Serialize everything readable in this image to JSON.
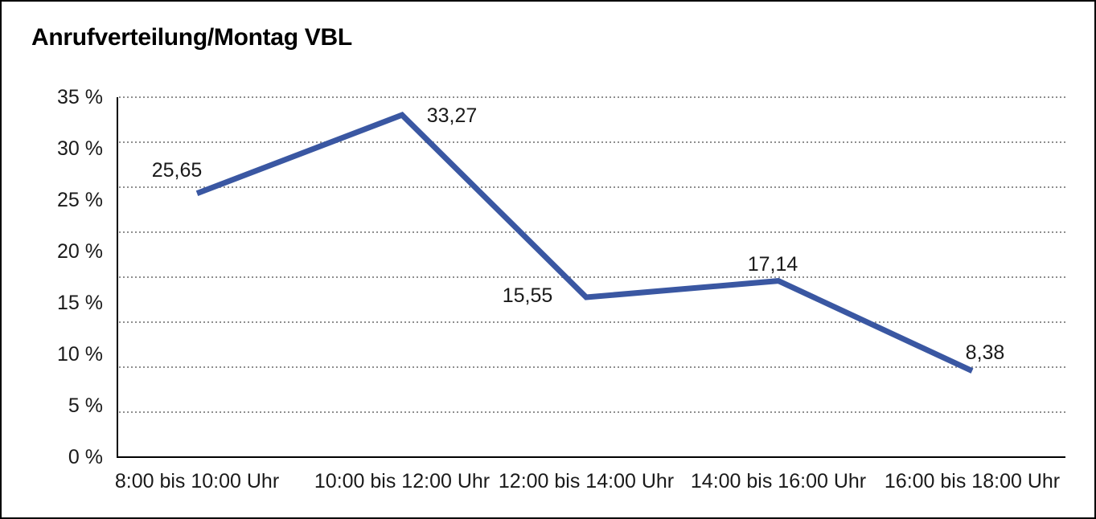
{
  "figure": {
    "border_color": "#000000",
    "background_color": "#ffffff"
  },
  "chart_data": {
    "type": "line",
    "title": "Anrufverteilung/Montag VBL",
    "categories": [
      "8:00 bis 10:00 Uhr",
      "10:00 bis 12:00 Uhr",
      "12:00 bis 14:00 Uhr",
      "14:00 bis 16:00 Uhr",
      "16:00 bis 18:00 Uhr"
    ],
    "series": [
      {
        "name": "Anrufverteilung Montag VBL",
        "values": [
          25.65,
          33.27,
          15.55,
          17.14,
          8.38
        ]
      }
    ],
    "value_labels": [
      "25,65",
      "33,27",
      "15,55",
      "17,14",
      "8,38"
    ],
    "xlabel": "",
    "ylabel": "",
    "ylim": [
      0,
      35
    ],
    "y_ticks": [
      {
        "value": 0,
        "label": "0 %"
      },
      {
        "value": 5,
        "label": "5 %"
      },
      {
        "value": 10,
        "label": "10 %"
      },
      {
        "value": 15,
        "label": "15 %"
      },
      {
        "value": 20,
        "label": "20 %"
      },
      {
        "value": 25,
        "label": "25 %"
      },
      {
        "value": 30,
        "label": "30 %"
      },
      {
        "value": 35,
        "label": "35 %"
      }
    ],
    "grid": "horizontal-dotted",
    "grid_divisions": 8,
    "legend": "none",
    "line_color": "#3A57A2",
    "grid_color": "#8f8f8f",
    "axis_color": "#000000",
    "label_color": "#1a1a1a"
  }
}
